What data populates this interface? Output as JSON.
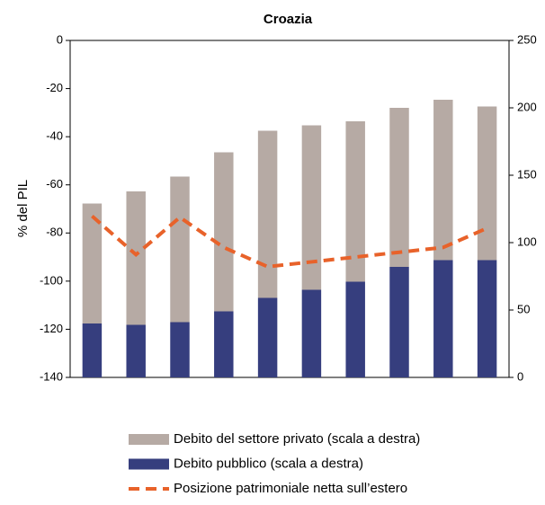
{
  "chart_data": {
    "type": "bar",
    "title": "Croazia",
    "y_label": "% del PIL",
    "categories": [
      null,
      null,
      null,
      null,
      null,
      null,
      null,
      null,
      null,
      null
    ],
    "ylim": [
      -140,
      0
    ],
    "yticks": [
      -140,
      -120,
      -100,
      -80,
      -60,
      -40,
      -20,
      0
    ],
    "y2lim": [
      0,
      250
    ],
    "y2ticks": [
      0,
      50,
      100,
      150,
      200,
      250
    ],
    "stacked": true,
    "series": [
      {
        "name": "Debito del settore privato (scala a destra)",
        "type": "bar",
        "axis": "y2",
        "color": "#b6aaa4",
        "values": [
          89,
          99,
          108,
          118,
          124,
          122,
          119,
          118,
          119,
          114
        ]
      },
      {
        "name": "Debito pubblico (scala a destra)",
        "type": "bar",
        "axis": "y2",
        "color": "#363e7e",
        "values": [
          40,
          39,
          41,
          49,
          59,
          65,
          71,
          82,
          87,
          87
        ]
      },
      {
        "name": "Posizione patrimoniale netta sull’estero",
        "type": "line",
        "axis": "y",
        "color": "#e8622a",
        "values": [
          -73,
          -89,
          -73.5,
          -86,
          -94,
          -92,
          -90,
          -88,
          -86,
          -78
        ]
      }
    ]
  }
}
